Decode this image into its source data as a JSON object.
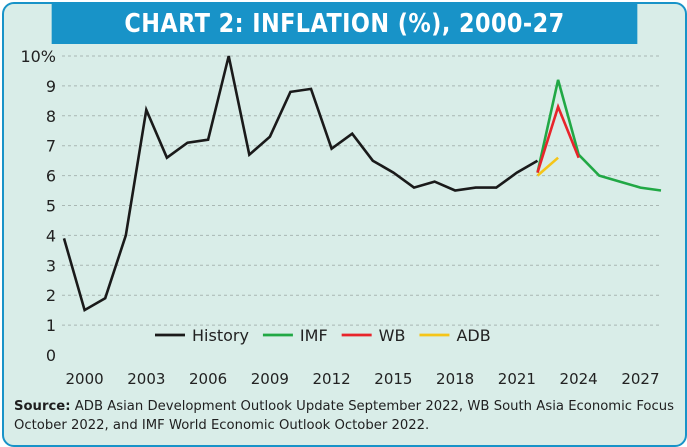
{
  "title": "CHART 2: INFLATION (%), 2000-27",
  "source_label": "Source:",
  "source_text": "ADB Asian Development Outlook Update September 2022, WB South Asia Economic Focus October 2022, and IMF World Economic Outlook October 2022.",
  "colors": {
    "background": "#d9ede8",
    "title_bar": "#1893c8",
    "history": "#1a1a1a",
    "imf": "#21a845",
    "wb": "#e8242b",
    "adb": "#f5c518",
    "grid": "#a9b7b3"
  },
  "chart_data": {
    "type": "line",
    "title": "CHART 2: INFLATION (%), 2000-27",
    "xlabel": "",
    "ylabel": "",
    "xlim": [
      1999,
      2028
    ],
    "ylim": [
      0,
      10
    ],
    "y_ticks": [
      "0",
      "1",
      "2",
      "3",
      "4",
      "5",
      "6",
      "7",
      "8",
      "9",
      "10%"
    ],
    "x_ticks": [
      "2000",
      "2003",
      "2006",
      "2009",
      "2012",
      "2015",
      "2018",
      "2021",
      "2024",
      "2027"
    ],
    "grid": "horizontal",
    "legend_position": "bottom-center",
    "series": [
      {
        "name": "History",
        "color": "#1a1a1a",
        "x": [
          1999,
          2000,
          2001,
          2002,
          2003,
          2004,
          2005,
          2006,
          2007,
          2008,
          2009,
          2010,
          2011,
          2012,
          2013,
          2014,
          2015,
          2016,
          2017,
          2018,
          2019,
          2020,
          2021,
          2022
        ],
        "y": [
          3.9,
          1.5,
          1.9,
          4.0,
          8.2,
          6.6,
          7.1,
          7.2,
          10.0,
          6.7,
          7.3,
          8.8,
          8.9,
          6.9,
          7.4,
          6.5,
          6.1,
          5.6,
          5.8,
          5.5,
          5.6,
          5.6,
          6.1,
          6.5
        ]
      },
      {
        "name": "IMF",
        "color": "#21a845",
        "x": [
          2022,
          2023,
          2024,
          2025,
          2026,
          2027,
          2028
        ],
        "y": [
          6.1,
          9.2,
          6.7,
          6.0,
          5.8,
          5.6,
          5.5
        ]
      },
      {
        "name": "WB",
        "color": "#e8242b",
        "x": [
          2022,
          2023,
          2024
        ],
        "y": [
          6.1,
          8.3,
          6.6
        ]
      },
      {
        "name": "ADB",
        "color": "#f5c518",
        "x": [
          2022,
          2023
        ],
        "y": [
          6.0,
          6.6
        ]
      }
    ]
  }
}
